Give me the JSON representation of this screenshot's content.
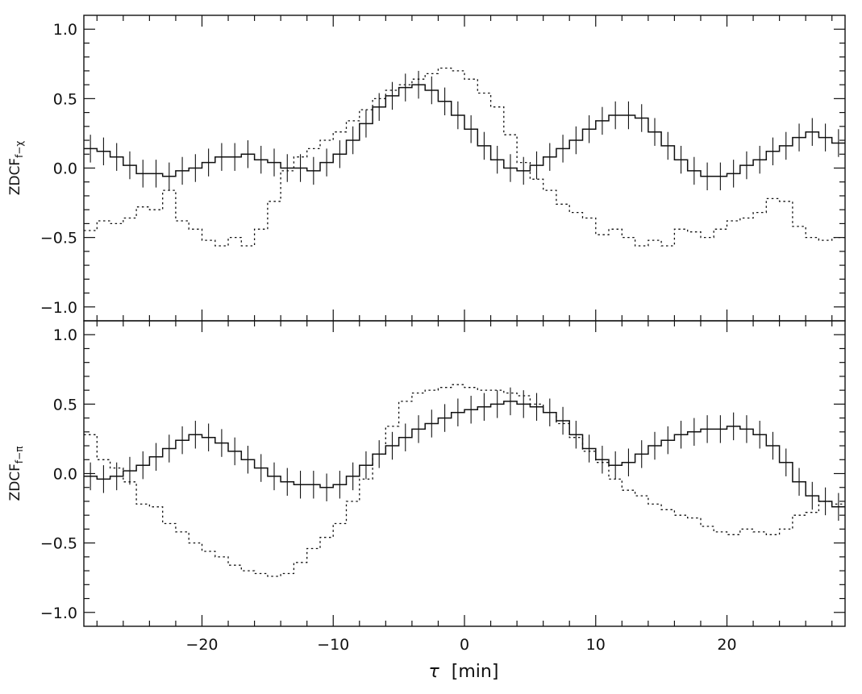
{
  "chart_data": {
    "type": "line",
    "shared_x": {
      "label": "τ [min]",
      "symbol": "τ",
      "unit": "[min]",
      "range": [
        -29,
        29
      ],
      "ticks": [
        -20,
        -10,
        0,
        10,
        20
      ],
      "tick_labels": [
        "−20",
        "−10",
        "0",
        "10",
        "20"
      ]
    },
    "panels": [
      {
        "ylabel_main": "ZDCF",
        "ylabel_sub": "f−χ",
        "ylim": [
          -1.1,
          1.1
        ],
        "yticks": [
          1.0,
          0.5,
          0.0,
          -0.5,
          -1.0
        ],
        "ytick_labels": [
          "1.0",
          "0.5",
          "0.0",
          "−0.5",
          "−1.0"
        ],
        "solid": {
          "x": [
            -29,
            -28,
            -27,
            -26,
            -25,
            -24,
            -23,
            -22,
            -21,
            -20,
            -19,
            -18,
            -17,
            -16,
            -15,
            -14,
            -13,
            -12,
            -11,
            -10,
            -9,
            -8,
            -7,
            -6,
            -5,
            -4,
            -3,
            -2,
            -1,
            0,
            1,
            2,
            3,
            4,
            5,
            6,
            7,
            8,
            9,
            10,
            11,
            12,
            13,
            14,
            15,
            16,
            17,
            18,
            19,
            20,
            21,
            22,
            23,
            24,
            25,
            26,
            27,
            28
          ],
          "y": [
            0.14,
            0.12,
            0.08,
            0.02,
            -0.04,
            -0.04,
            -0.06,
            -0.02,
            0.0,
            0.04,
            0.08,
            0.08,
            0.1,
            0.06,
            0.04,
            0.0,
            0.0,
            -0.02,
            0.04,
            0.1,
            0.2,
            0.32,
            0.44,
            0.52,
            0.58,
            0.6,
            0.56,
            0.48,
            0.38,
            0.28,
            0.16,
            0.06,
            0.0,
            -0.02,
            0.02,
            0.08,
            0.14,
            0.2,
            0.28,
            0.34,
            0.38,
            0.38,
            0.36,
            0.26,
            0.16,
            0.06,
            -0.02,
            -0.06,
            -0.06,
            -0.04,
            0.02,
            0.06,
            0.12,
            0.16,
            0.22,
            0.26,
            0.22,
            0.18
          ],
          "err": 0.1
        },
        "dotted": {
          "x": [
            -29,
            -28,
            -27,
            -26,
            -25,
            -24,
            -23,
            -22,
            -21,
            -20,
            -19,
            -18,
            -17,
            -16,
            -15,
            -14,
            -13,
            -12,
            -11,
            -10,
            -9,
            -8,
            -7,
            -6,
            -5,
            -4,
            -3,
            -2,
            -1,
            0,
            1,
            2,
            3,
            4,
            5,
            6,
            7,
            8,
            9,
            10,
            11,
            12,
            13,
            14,
            15,
            16,
            17,
            18,
            19,
            20,
            21,
            22,
            23,
            24,
            25,
            26,
            27,
            28
          ],
          "y": [
            -0.45,
            -0.38,
            -0.4,
            -0.36,
            -0.28,
            -0.3,
            -0.16,
            -0.38,
            -0.44,
            -0.52,
            -0.56,
            -0.5,
            -0.56,
            -0.44,
            -0.24,
            -0.02,
            0.08,
            0.14,
            0.2,
            0.26,
            0.34,
            0.42,
            0.5,
            0.56,
            0.6,
            0.64,
            0.68,
            0.72,
            0.7,
            0.64,
            0.54,
            0.44,
            0.24,
            0.04,
            -0.08,
            -0.16,
            -0.26,
            -0.32,
            -0.36,
            -0.48,
            -0.44,
            -0.5,
            -0.56,
            -0.52,
            -0.56,
            -0.44,
            -0.46,
            -0.5,
            -0.44,
            -0.38,
            -0.36,
            -0.32,
            -0.22,
            -0.24,
            -0.42,
            -0.5,
            -0.52,
            -0.5
          ]
        }
      },
      {
        "ylabel_main": "ZDCF",
        "ylabel_sub": "f−π",
        "ylim": [
          -1.1,
          1.1
        ],
        "yticks": [
          1.0,
          0.5,
          0.0,
          -0.5,
          -1.0
        ],
        "ytick_labels": [
          "1.0",
          "0.5",
          "0.0",
          "−0.5",
          "−1.0"
        ],
        "solid": {
          "x": [
            -29,
            -28,
            -27,
            -26,
            -25,
            -24,
            -23,
            -22,
            -21,
            -20,
            -19,
            -18,
            -17,
            -16,
            -15,
            -14,
            -13,
            -12,
            -11,
            -10,
            -9,
            -8,
            -7,
            -6,
            -5,
            -4,
            -3,
            -2,
            -1,
            0,
            1,
            2,
            3,
            4,
            5,
            6,
            7,
            8,
            9,
            10,
            11,
            12,
            13,
            14,
            15,
            16,
            17,
            18,
            19,
            20,
            21,
            22,
            23,
            24,
            25,
            26,
            27,
            28
          ],
          "y": [
            -0.02,
            -0.04,
            -0.02,
            0.02,
            0.06,
            0.12,
            0.18,
            0.24,
            0.28,
            0.26,
            0.22,
            0.16,
            0.1,
            0.04,
            -0.02,
            -0.06,
            -0.08,
            -0.08,
            -0.1,
            -0.08,
            -0.02,
            0.06,
            0.14,
            0.2,
            0.26,
            0.32,
            0.36,
            0.4,
            0.44,
            0.46,
            0.48,
            0.5,
            0.52,
            0.5,
            0.48,
            0.44,
            0.38,
            0.28,
            0.18,
            0.1,
            0.06,
            0.08,
            0.14,
            0.2,
            0.24,
            0.28,
            0.3,
            0.32,
            0.32,
            0.34,
            0.32,
            0.28,
            0.2,
            0.08,
            -0.06,
            -0.16,
            -0.2,
            -0.24
          ],
          "err": 0.1
        },
        "dotted": {
          "x": [
            -29,
            -28,
            -27,
            -26,
            -25,
            -24,
            -23,
            -22,
            -21,
            -20,
            -19,
            -18,
            -17,
            -16,
            -15,
            -14,
            -13,
            -12,
            -11,
            -10,
            -9,
            -8,
            -7,
            -6,
            -5,
            -4,
            -3,
            -2,
            -1,
            0,
            1,
            2,
            3,
            4,
            5,
            6,
            7,
            8,
            9,
            10,
            11,
            12,
            13,
            14,
            15,
            16,
            17,
            18,
            19,
            20,
            21,
            22,
            23,
            24,
            25,
            26,
            27,
            28
          ],
          "y": [
            0.28,
            0.1,
            0.04,
            -0.06,
            -0.22,
            -0.24,
            -0.36,
            -0.42,
            -0.5,
            -0.56,
            -0.6,
            -0.66,
            -0.7,
            -0.72,
            -0.74,
            -0.72,
            -0.64,
            -0.54,
            -0.46,
            -0.36,
            -0.2,
            -0.04,
            0.14,
            0.34,
            0.52,
            0.58,
            0.6,
            0.62,
            0.64,
            0.62,
            0.6,
            0.6,
            0.58,
            0.56,
            0.5,
            0.44,
            0.36,
            0.26,
            0.16,
            0.08,
            -0.04,
            -0.12,
            -0.16,
            -0.22,
            -0.26,
            -0.3,
            -0.32,
            -0.38,
            -0.42,
            -0.44,
            -0.4,
            -0.42,
            -0.44,
            -0.4,
            -0.3,
            -0.28,
            -0.2,
            -0.22
          ]
        }
      }
    ]
  }
}
